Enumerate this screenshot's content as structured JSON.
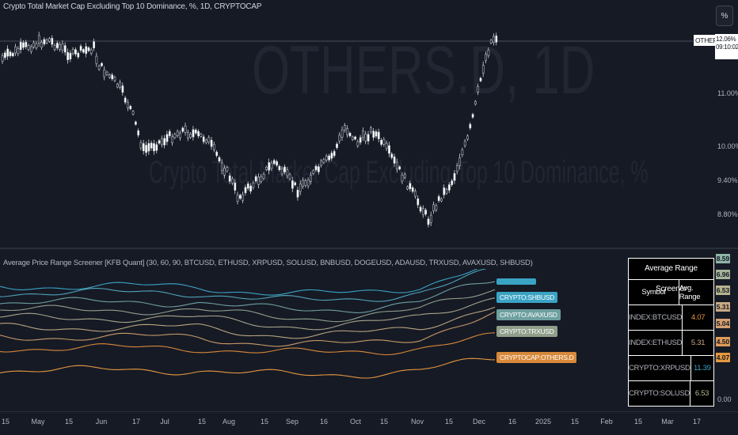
{
  "header": {
    "chart_title": "Crypto Total Market Cap Excluding Top 10 Dominance, %, 1D, CRYPTOCAP",
    "watermark_symbol": "OTHERS.D, 1D",
    "watermark_description": "Crypto Total Market Cap Excluding Top 10 Dominance, %"
  },
  "toolbar": {
    "percent_button": "%"
  },
  "price_axis": {
    "symbol_label": "OTHERS.D",
    "last_price": "12.06%",
    "countdown": "09:10:02",
    "ticks": [
      "11.00%",
      "10.00%",
      "9.40%",
      "8.80%"
    ]
  },
  "indicator": {
    "title": "Average Price Range Screener [KFB Quant] (30, 60, 90, BTCUSD, ETHUSD, XRPUSD, SOLUSD, BNBUSD, DOGEUSD, ADAUSD, TRXUSD, AVAXUSD, SHBUSD)",
    "axis_badges": [
      {
        "value": "8.59",
        "color": "#8fb3a8"
      },
      {
        "value": "6.96",
        "color": "#a5b49b"
      },
      {
        "value": "6.53",
        "color": "#b7b38f"
      },
      {
        "value": "5.31",
        "color": "#c8a984"
      },
      {
        "value": "5.04",
        "color": "#d3a070"
      },
      {
        "value": "4.50",
        "color": "#dd9b5a"
      },
      {
        "value": "4.07",
        "color": "#e59840"
      }
    ],
    "axis_zero": "0.00",
    "line_labels": [
      {
        "text": "CRYPTO:SHBUSD",
        "color": "#3aa3c4"
      },
      {
        "text": "CRYPTO:AVAXUSD",
        "color": "#6e9fa0"
      },
      {
        "text": "CRYPTO:TRXUSD",
        "color": "#8f9f8a"
      },
      {
        "text": "CRYPTOCAP:OTHERS.D",
        "color": "#d8893a"
      }
    ],
    "screener": {
      "title": "Average Range Screener",
      "columns": [
        "Symbol",
        "Avg. Range"
      ],
      "rows": [
        {
          "symbol": "INDEX:BTCUSD",
          "value": "4.07",
          "color": "#e59840"
        },
        {
          "symbol": "INDEX:ETHUSD",
          "value": "5.31",
          "color": "#c8a984"
        },
        {
          "symbol": "CRYPTO:XRPUSD",
          "value": "11.39",
          "color": "#3aa3c4"
        },
        {
          "symbol": "CRYPTO:SOLUSD",
          "value": "6.53",
          "color": "#b7b38f"
        }
      ]
    }
  },
  "time_axis": {
    "ticks": [
      "15",
      "May",
      "15",
      "Jun",
      "17",
      "Jul",
      "15",
      "Aug",
      "15",
      "Sep",
      "16",
      "Oct",
      "15",
      "Nov",
      "15",
      "Dec",
      "16",
      "2025",
      "15",
      "Feb",
      "15",
      "Mar",
      "17"
    ]
  }
}
